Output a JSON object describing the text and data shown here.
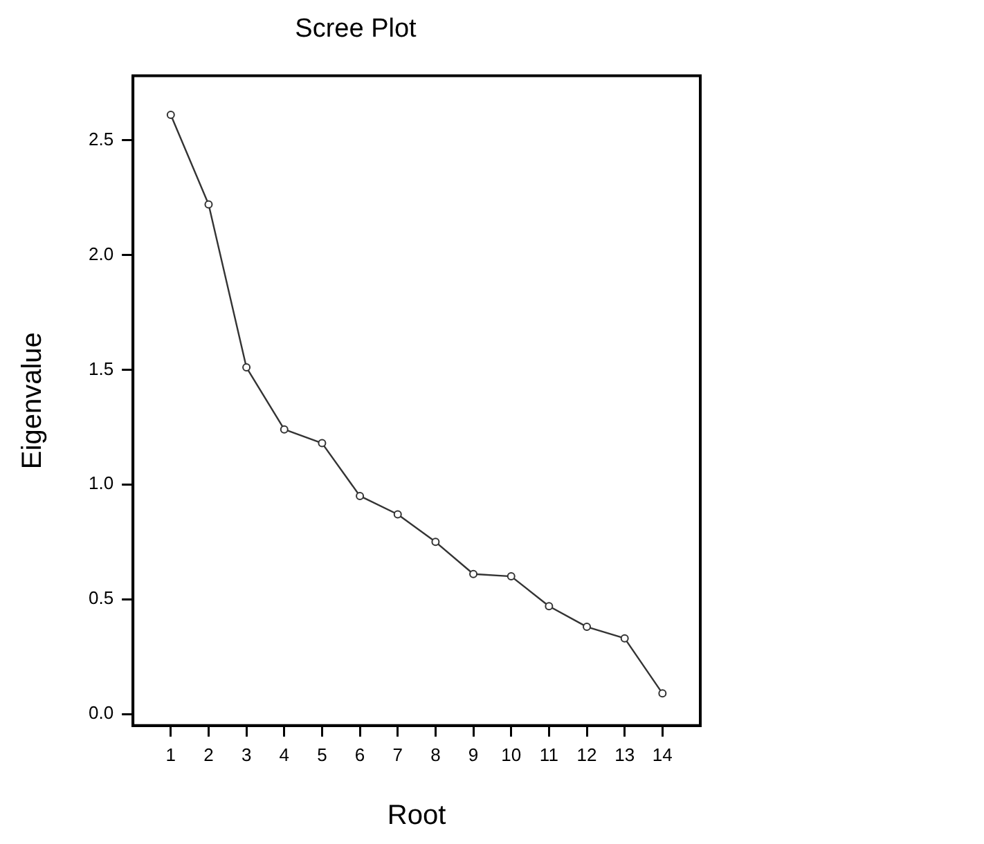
{
  "chart_data": {
    "type": "line",
    "title": "Scree Plot",
    "xlabel": "Root",
    "ylabel": "Eigenvalue",
    "x": [
      1,
      2,
      3,
      4,
      5,
      6,
      7,
      8,
      9,
      10,
      11,
      12,
      13,
      14
    ],
    "series": [
      {
        "color": "#333333",
        "values": [
          2.61,
          2.22,
          1.51,
          1.24,
          1.18,
          0.95,
          0.87,
          0.75,
          0.61,
          0.6,
          0.47,
          0.38,
          0.33,
          0.09
        ]
      }
    ],
    "xlim": [
      0,
      15
    ],
    "xticks": [
      1,
      2,
      3,
      4,
      5,
      6,
      7,
      8,
      9,
      10,
      11,
      12,
      13,
      14
    ],
    "ylim": [
      -0.05,
      2.78
    ],
    "yticks": [
      {
        "value": 0,
        "label": "0.0"
      },
      {
        "value": 0.5,
        "label": "0.5"
      },
      {
        "value": 1,
        "label": "1.0"
      },
      {
        "value": 1.5,
        "label": "1.5"
      },
      {
        "value": 2,
        "label": "2.0"
      },
      {
        "value": 2.5,
        "label": "2.5"
      }
    ],
    "grid": false,
    "legend": false,
    "marker": "circle",
    "line_style": "solid"
  }
}
